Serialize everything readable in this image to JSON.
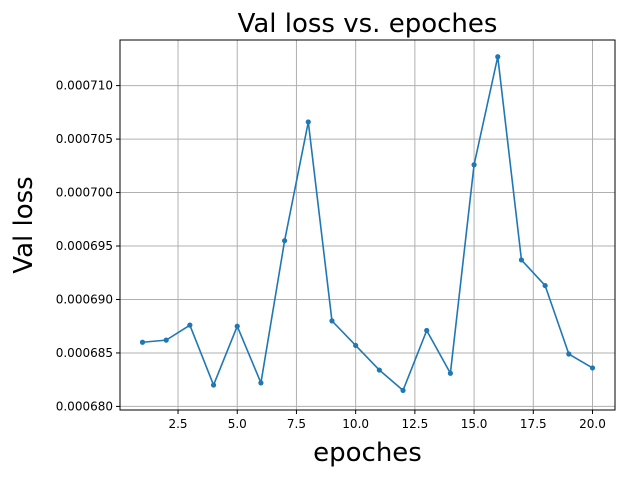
{
  "chart_data": {
    "type": "line",
    "title": "Val loss vs. epoches",
    "xlabel": "epoches",
    "ylabel": "Val loss",
    "xlim": [
      0.05,
      20.95
    ],
    "ylim": [
      0.000679665,
      0.000714265
    ],
    "xticks": [
      2.5,
      5.0,
      7.5,
      10.0,
      12.5,
      15.0,
      17.5,
      20.0
    ],
    "xtick_labels": [
      "2.5",
      "5.0",
      "7.5",
      "10.0",
      "12.5",
      "15.0",
      "17.5",
      "20.0"
    ],
    "yticks": [
      0.00068,
      0.000685,
      0.00069,
      0.000695,
      0.0007,
      0.000705,
      0.00071
    ],
    "ytick_labels": [
      "0.000680",
      "0.000685",
      "0.000690",
      "0.000695",
      "0.000700",
      "0.000705",
      "0.000710"
    ],
    "grid": true,
    "color": "#1f77b4",
    "marker": "dot",
    "series": [
      {
        "x": [
          1,
          2,
          3,
          4,
          5,
          6,
          7,
          8,
          9,
          10,
          11,
          12,
          13,
          14,
          15,
          16,
          17,
          18,
          19,
          20
        ],
        "values": [
          0.000686,
          0.0006862,
          0.0006876,
          0.000682,
          0.0006875,
          0.0006822,
          0.0006955,
          0.0007066,
          0.000688,
          0.0006857,
          0.0006834,
          0.0006815,
          0.0006871,
          0.0006831,
          0.0007026,
          0.0007127,
          0.0006937,
          0.0006913,
          0.0006849,
          0.0006836
        ]
      }
    ]
  }
}
